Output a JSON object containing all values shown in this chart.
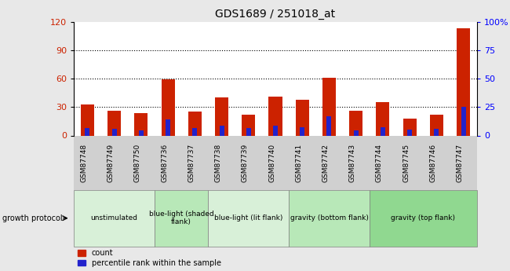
{
  "title": "GDS1689 / 251018_at",
  "samples": [
    "GSM87748",
    "GSM87749",
    "GSM87750",
    "GSM87736",
    "GSM87737",
    "GSM87738",
    "GSM87739",
    "GSM87740",
    "GSM87741",
    "GSM87742",
    "GSM87743",
    "GSM87744",
    "GSM87745",
    "GSM87746",
    "GSM87747"
  ],
  "red_values": [
    33,
    26,
    24,
    59,
    25,
    40,
    22,
    41,
    38,
    61,
    26,
    35,
    18,
    22,
    113
  ],
  "blue_values": [
    8,
    7,
    5,
    17,
    8,
    10,
    8,
    10,
    9,
    20,
    5,
    9,
    6,
    7,
    30
  ],
  "bar_width": 0.5,
  "red_color": "#cc2200",
  "blue_color": "#2222cc",
  "ylim_left": [
    0,
    120
  ],
  "ylim_right": [
    0,
    100
  ],
  "yticks_left": [
    0,
    30,
    60,
    90,
    120
  ],
  "yticks_right": [
    0,
    25,
    50,
    75,
    100
  ],
  "ytick_labels_right": [
    "0",
    "25",
    "50",
    "75",
    "100%"
  ],
  "gridlines": [
    30,
    60,
    90
  ],
  "groups": [
    {
      "label": "unstimulated",
      "start": 0,
      "end": 3,
      "color": "#d8f0d8"
    },
    {
      "label": "blue-light (shaded\nflank)",
      "start": 3,
      "end": 5,
      "color": "#b8e8b8"
    },
    {
      "label": "blue-light (lit flank)",
      "start": 5,
      "end": 8,
      "color": "#d8f0d8"
    },
    {
      "label": "gravity (bottom flank)",
      "start": 8,
      "end": 11,
      "color": "#b8e8b8"
    },
    {
      "label": "gravity (top flank)",
      "start": 11,
      "end": 15,
      "color": "#90d890"
    }
  ],
  "growth_protocol_label": "growth protocol",
  "legend_items": [
    "count",
    "percentile rank within the sample"
  ],
  "fig_bg_color": "#e8e8e8",
  "axis_area_bg": "#ffffff",
  "xtick_area_bg": "#d0d0d0"
}
